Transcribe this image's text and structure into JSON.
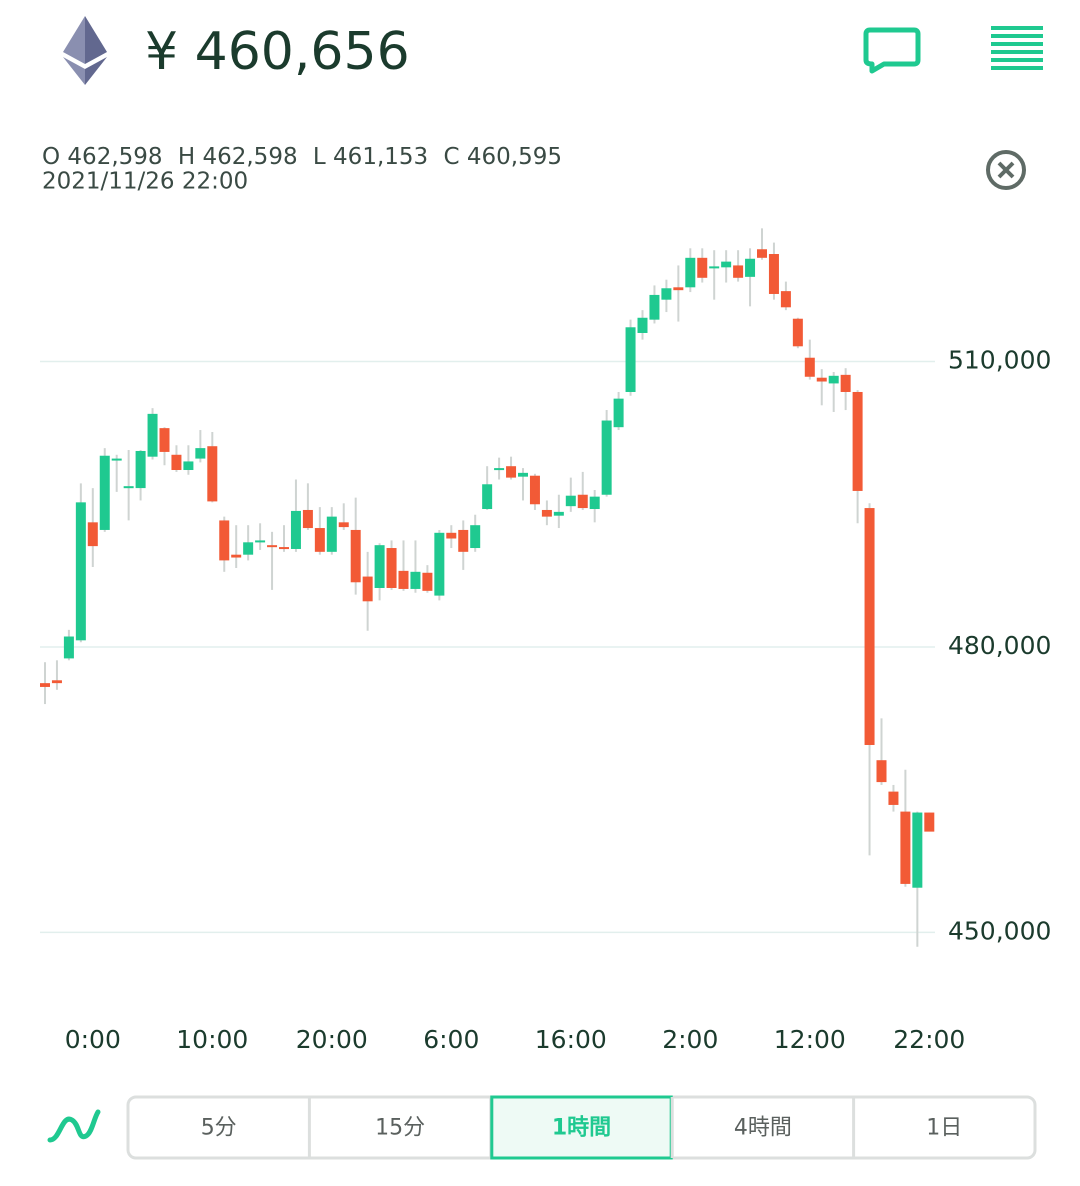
{
  "header": {
    "price": "¥ 460,656",
    "ohlc": [
      {
        "key": "O",
        "value": "462,598"
      },
      {
        "key": "H",
        "value": "462,598"
      },
      {
        "key": "L",
        "value": "461,153"
      },
      {
        "key": "C",
        "value": "460,595"
      }
    ],
    "datetime": "2021/11/26 22:00"
  },
  "chart_data": {
    "type": "candlestick",
    "categories": [
      null,
      null,
      null,
      null,
      "0:00",
      null,
      null,
      null,
      null,
      null,
      null,
      null,
      null,
      null,
      "10:00",
      null,
      null,
      null,
      null,
      null,
      null,
      null,
      null,
      null,
      "20:00",
      null,
      null,
      null,
      null,
      null,
      null,
      null,
      null,
      null,
      "6:00",
      null,
      null,
      null,
      null,
      null,
      null,
      null,
      null,
      null,
      "16:00",
      null,
      null,
      null,
      null,
      null,
      null,
      null,
      null,
      null,
      "2:00",
      null,
      null,
      null,
      null,
      null,
      null,
      null,
      null,
      null,
      "12:00",
      null,
      null,
      null,
      null,
      null,
      null,
      null,
      null,
      null,
      "22:00"
    ],
    "open": [
      476200,
      476500,
      478800,
      480700,
      493100,
      492300,
      499800,
      496700,
      496700,
      500000,
      503000,
      500200,
      498600,
      499800,
      501100,
      493300,
      489700,
      489700,
      491100,
      490700,
      490500,
      490300,
      494400,
      492500,
      490000,
      493100,
      492300,
      487400,
      486200,
      490400,
      488000,
      486100,
      487800,
      485400,
      492000,
      492300,
      490400,
      494500,
      498600,
      499000,
      497900,
      498000,
      494400,
      493800,
      494800,
      496000,
      494500,
      496000,
      503100,
      506800,
      513000,
      514400,
      516500,
      517800,
      517800,
      520900,
      519800,
      519900,
      520100,
      518900,
      521800,
      521300,
      517400,
      514500,
      510400,
      508300,
      507700,
      508600,
      506800,
      494600,
      468100,
      464800,
      462700,
      454700,
      462598
    ],
    "high": [
      478400,
      478600,
      481800,
      497200,
      496700,
      500900,
      500200,
      500700,
      500700,
      505100,
      503100,
      501200,
      501200,
      502800,
      502600,
      493700,
      492800,
      492800,
      493000,
      492100,
      492800,
      497600,
      497200,
      494700,
      494700,
      495100,
      495700,
      490000,
      490900,
      491200,
      491200,
      491200,
      488600,
      492300,
      492800,
      493300,
      493900,
      499000,
      499900,
      500000,
      498800,
      498200,
      495400,
      496000,
      497800,
      498400,
      496500,
      504900,
      506800,
      514400,
      515400,
      518000,
      518600,
      520100,
      521900,
      521900,
      521700,
      521700,
      521700,
      521900,
      524000,
      522500,
      518400,
      514600,
      512300,
      509200,
      508900,
      509300,
      507000,
      495100,
      472500,
      465500,
      467100,
      462700,
      462598
    ],
    "low": [
      474000,
      475500,
      478600,
      480500,
      488400,
      492100,
      496300,
      493300,
      495400,
      499700,
      499100,
      498400,
      498100,
      499400,
      495200,
      487900,
      488300,
      489100,
      490200,
      486000,
      490000,
      490000,
      492300,
      489700,
      489700,
      492300,
      485500,
      481700,
      484900,
      486000,
      485900,
      485700,
      485700,
      484900,
      490400,
      488100,
      490000,
      494400,
      497600,
      497600,
      495400,
      494400,
      492800,
      492500,
      494200,
      494400,
      493100,
      495800,
      502800,
      506400,
      512300,
      514000,
      515200,
      514200,
      517300,
      518300,
      516500,
      518300,
      518400,
      515800,
      520700,
      516500,
      515400,
      511400,
      508100,
      505400,
      504700,
      504900,
      493000,
      458100,
      465500,
      462700,
      454800,
      448500,
      461153
    ],
    "close": [
      475800,
      476200,
      481100,
      495200,
      490600,
      500100,
      499800,
      496900,
      500600,
      504500,
      500500,
      498600,
      499500,
      500900,
      495300,
      489100,
      489400,
      491000,
      491200,
      490500,
      490300,
      494300,
      492500,
      490000,
      493700,
      492600,
      486800,
      484800,
      490700,
      486200,
      486100,
      487900,
      485900,
      492000,
      491400,
      490000,
      492800,
      497100,
      498800,
      497800,
      498300,
      495000,
      493700,
      494200,
      495900,
      494600,
      495800,
      503800,
      506100,
      513600,
      514600,
      517000,
      517700,
      517500,
      520900,
      518800,
      520000,
      520500,
      518800,
      520800,
      520900,
      517100,
      515700,
      511600,
      508400,
      507900,
      508500,
      506800,
      496400,
      469700,
      465800,
      463400,
      455100,
      462600,
      460595
    ],
    "colors": {
      "up": "#1fc990",
      "down": "#f25a36"
    },
    "ylim": [
      443950,
      525400
    ],
    "yticks": [
      {
        "value": 450000,
        "label": "450,000"
      },
      {
        "value": 480000,
        "label": "480,000"
      },
      {
        "value": 510000,
        "label": "510,000"
      }
    ],
    "grid": true
  },
  "timeframes": [
    "5分",
    "15分",
    "1時間",
    "4時間",
    "1日"
  ],
  "selected_timeframe": 2
}
